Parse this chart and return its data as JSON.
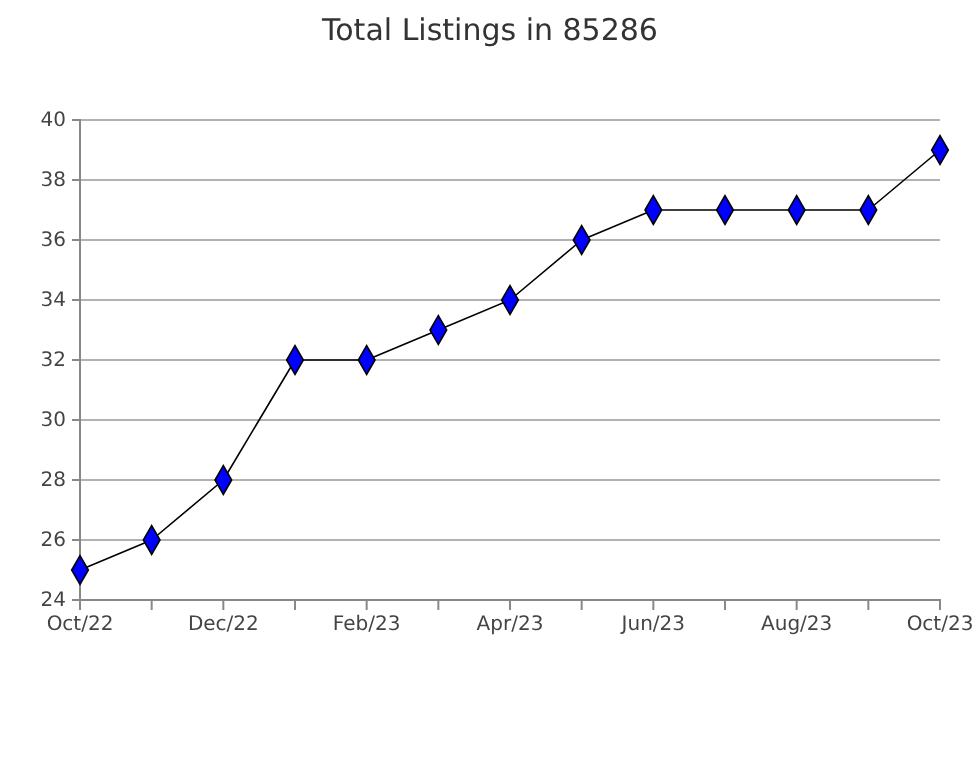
{
  "chart_data": {
    "type": "line",
    "title": "Total Listings in 85286",
    "categories": [
      "Oct/22",
      null,
      "Dec/22",
      null,
      "Feb/23",
      null,
      "Apr/23",
      null,
      "Jun/23",
      null,
      "Aug/23",
      null,
      "Oct/23"
    ],
    "series": [
      {
        "color": "#0000ff",
        "values": [
          25,
          26,
          28,
          32,
          32,
          33,
          34,
          36,
          37,
          37,
          37,
          37,
          39
        ]
      }
    ],
    "ylim": [
      24,
      40
    ],
    "yticks": [
      24,
      26,
      28,
      30,
      32,
      34,
      36,
      38,
      40
    ],
    "grid": "y",
    "marker": "diamond",
    "line_style": "solid"
  }
}
